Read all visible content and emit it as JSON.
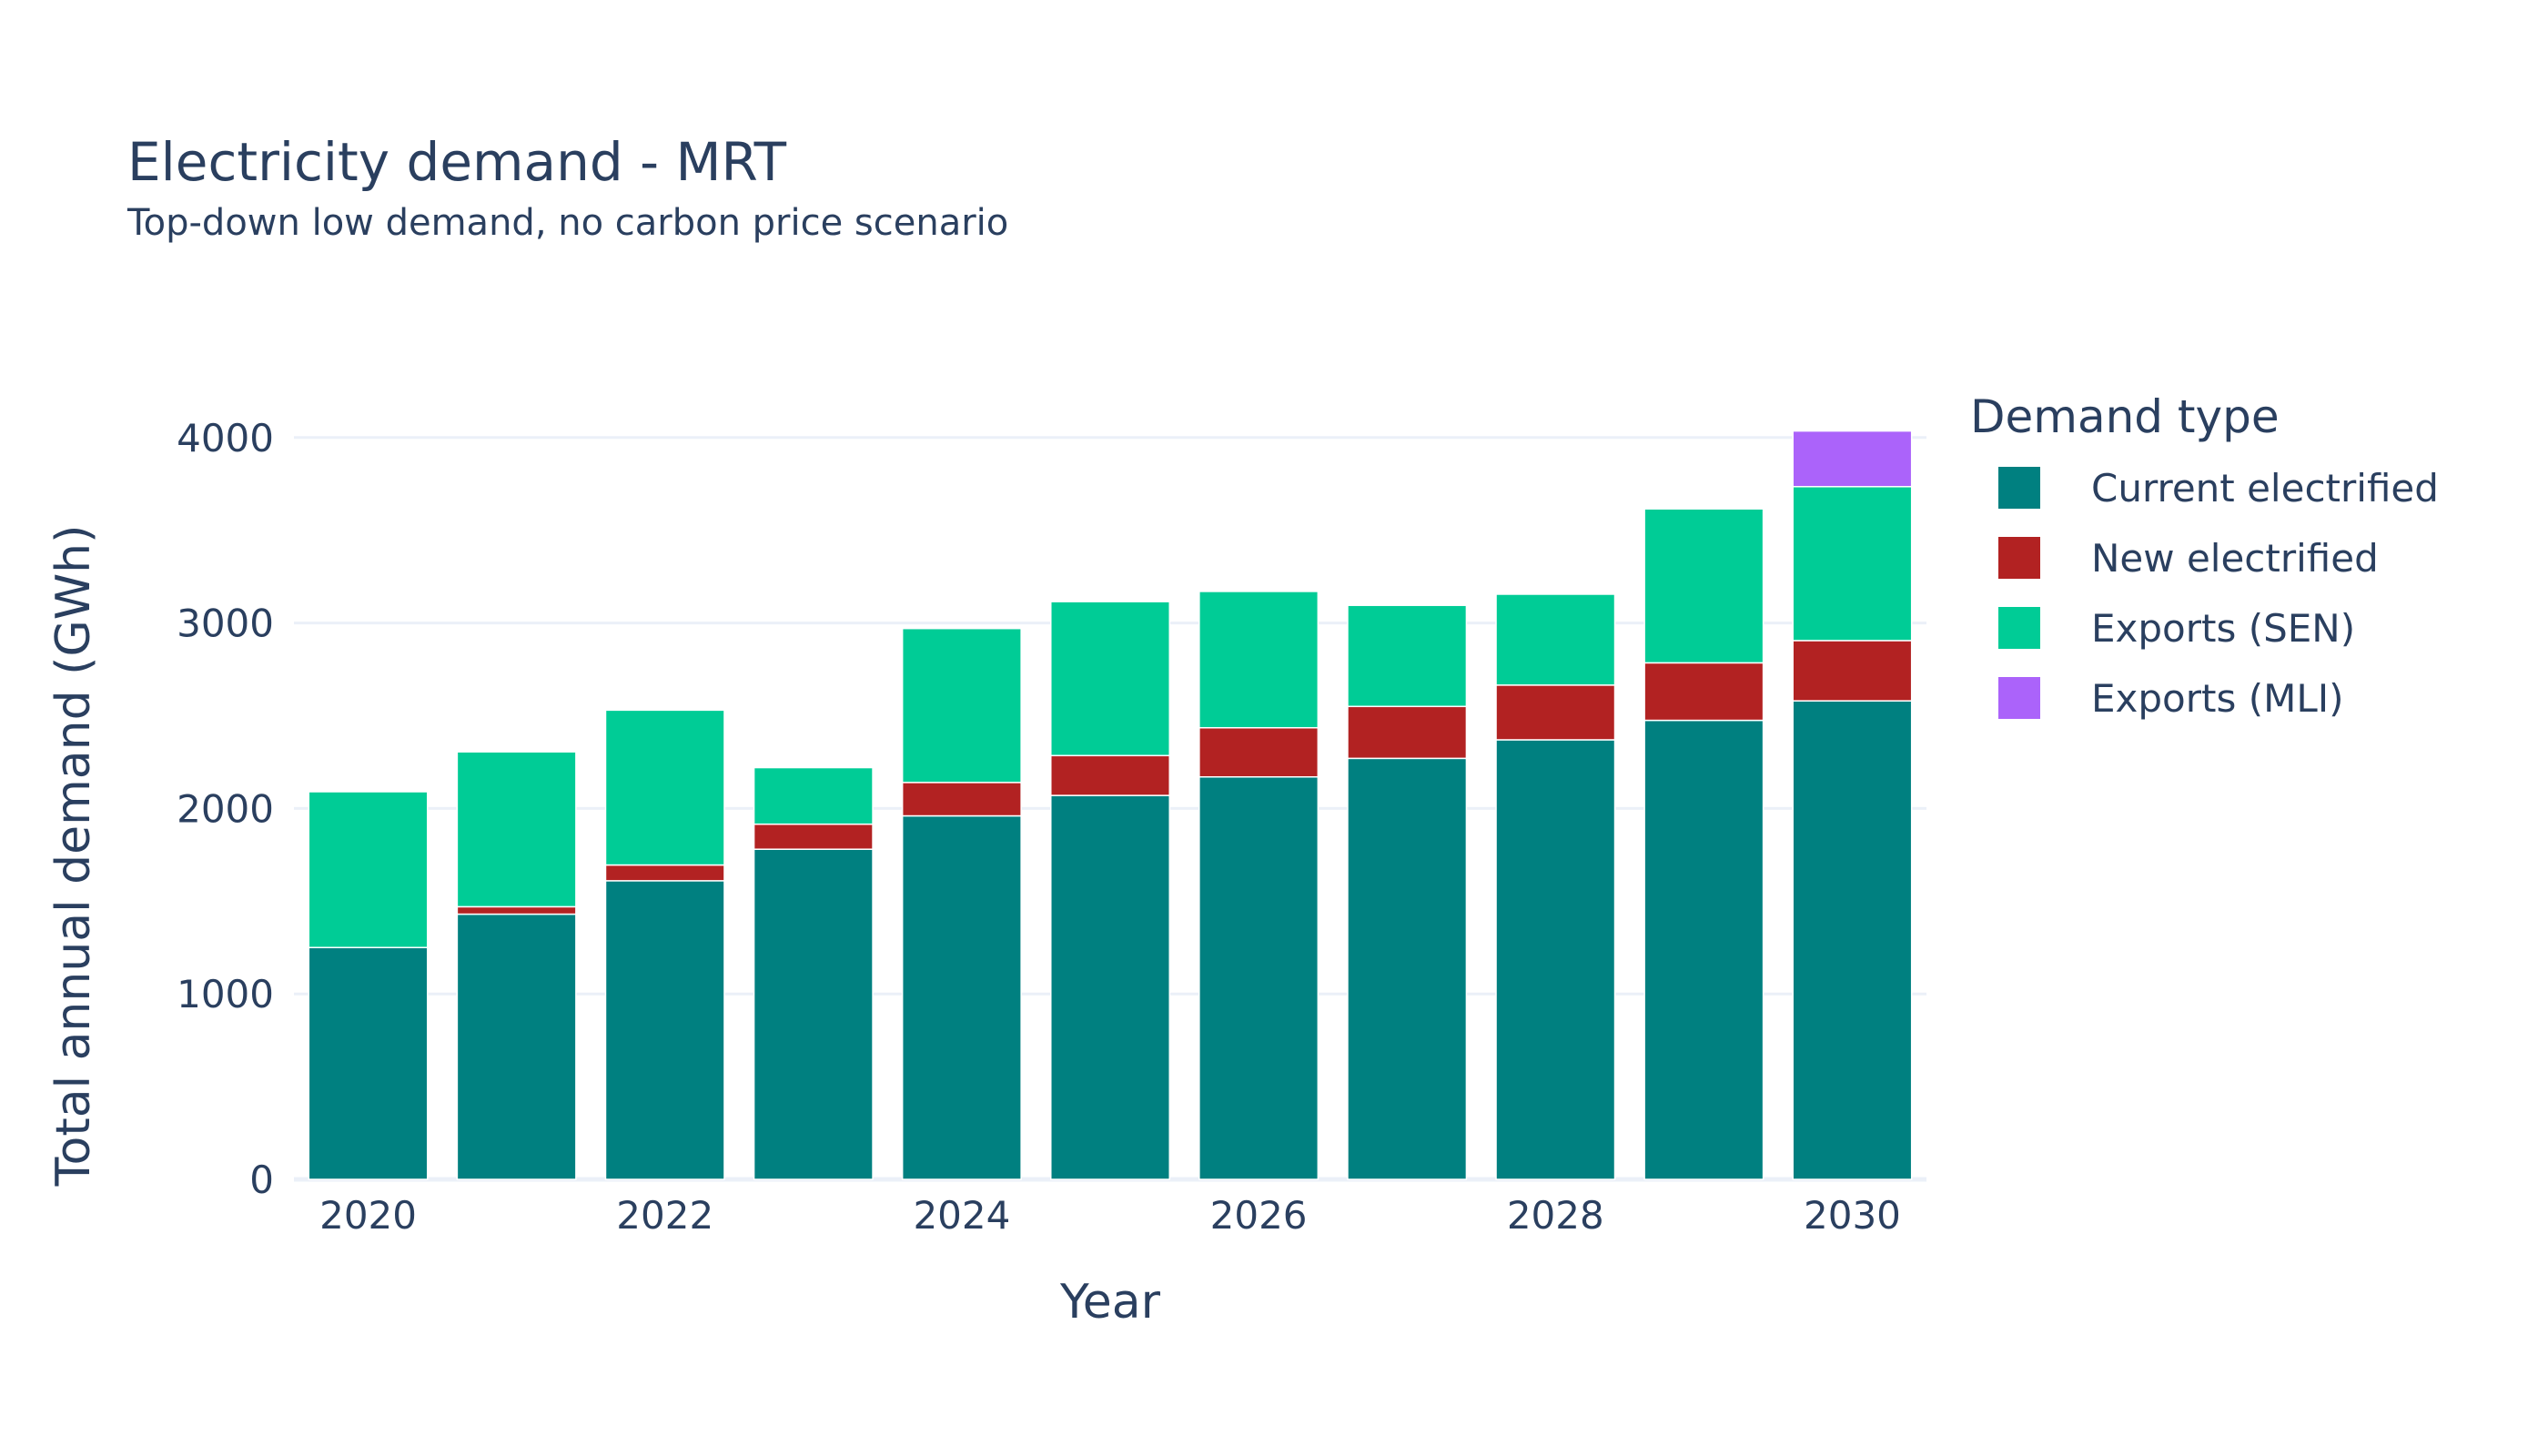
{
  "chart_data": {
    "type": "bar",
    "stacked": true,
    "title": "Electricity demand - MRT",
    "subtitle": "Top-down low demand, no carbon price scenario",
    "xlabel": "Year",
    "ylabel": "Total annual demand (GWh)",
    "x": [
      2020,
      2021,
      2022,
      2023,
      2024,
      2025,
      2026,
      2027,
      2028,
      2029,
      2030
    ],
    "x_ticks": [
      "2020",
      "2022",
      "2024",
      "2026",
      "2028",
      "2030"
    ],
    "y_ticks": [
      "0",
      "1000",
      "2000",
      "3000",
      "4000"
    ],
    "ylim": [
      0,
      4200
    ],
    "grid": true,
    "legend_title": "Demand type",
    "legend_position": "right",
    "series": [
      {
        "name": "Current electrified",
        "color": "#008080",
        "values": [
          1250,
          1430,
          1610,
          1780,
          1960,
          2070,
          2170,
          2270,
          2370,
          2475,
          2580
        ]
      },
      {
        "name": "New electrified",
        "color": "#b22222",
        "values": [
          0,
          40,
          85,
          135,
          180,
          215,
          265,
          280,
          295,
          310,
          325
        ]
      },
      {
        "name": "Exports (SEN)",
        "color": "#00cc96",
        "values": [
          840,
          835,
          835,
          305,
          830,
          830,
          735,
          545,
          490,
          830,
          830
        ]
      },
      {
        "name": "Exports (MLI)",
        "color": "#ab63fa",
        "values": [
          0,
          0,
          0,
          0,
          0,
          0,
          0,
          0,
          0,
          0,
          300
        ]
      }
    ]
  }
}
